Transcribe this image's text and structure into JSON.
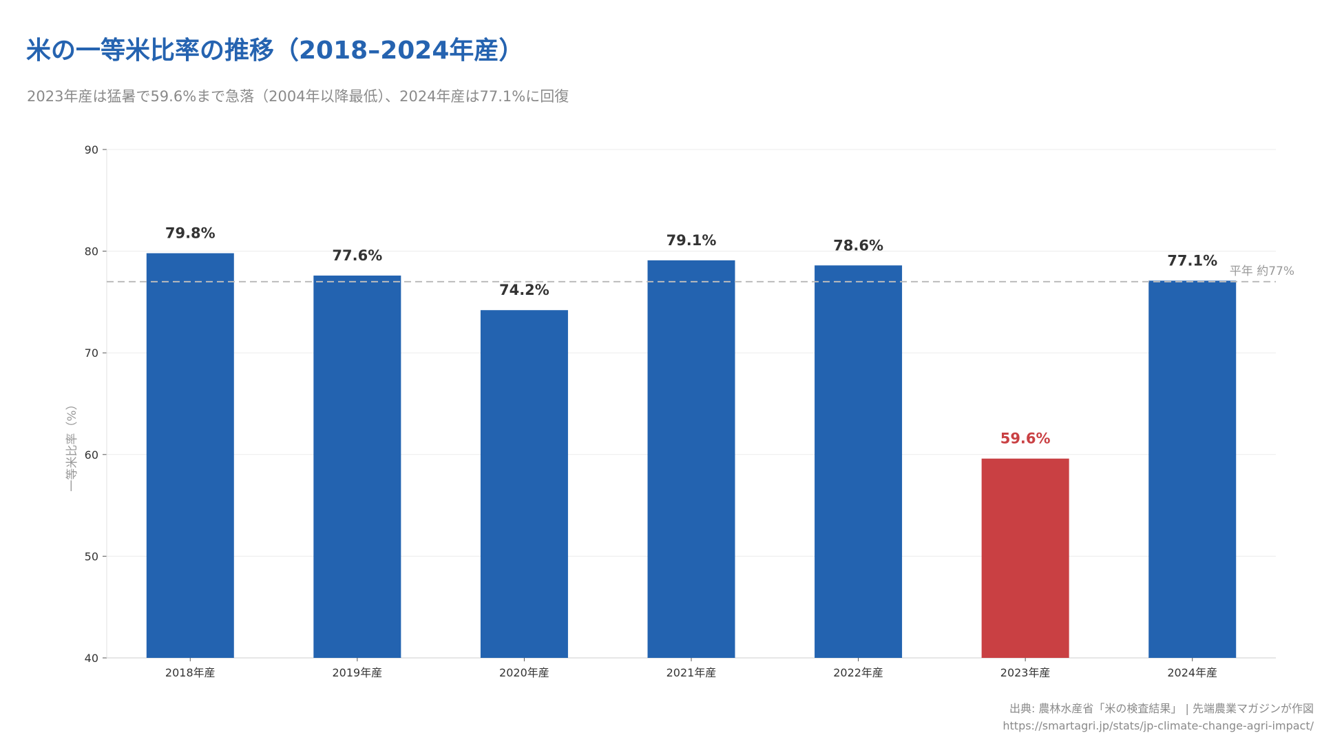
{
  "title": "米の一等米比率の推移（2018–2024年産）",
  "subtitle": "2023年産は猛暑で59.6%まで急落（2004年以降最低）、2024年産は77.1%に回復",
  "footer": {
    "source": "出典: 農林水産省「米の検査結果」 | 先端農業マガジンが作図",
    "url": "https://smartagri.jp/stats/jp-climate-change-agri-impact/"
  },
  "chart_data": {
    "type": "bar",
    "categories": [
      "2018年産",
      "2019年産",
      "2020年産",
      "2021年産",
      "2022年産",
      "2023年産",
      "2024年産"
    ],
    "values": [
      79.8,
      77.6,
      74.2,
      79.1,
      78.6,
      59.6,
      77.1
    ],
    "data_labels": [
      "79.8%",
      "77.6%",
      "74.2%",
      "79.1%",
      "78.6%",
      "59.6%",
      "77.1%"
    ],
    "ylabel": "一等米比率（%）",
    "xlabel": "",
    "ylim": [
      40,
      90
    ],
    "yticks": [
      40,
      50,
      60,
      70,
      80,
      90
    ],
    "grid": true,
    "reference_line": {
      "value": 77,
      "label": "平年 約77%",
      "color": "#bbbbbb"
    },
    "colors": {
      "default": "#2363b0",
      "highlight": "#c94043",
      "highlight_category": "2023年産",
      "label_default": "#333333"
    }
  }
}
